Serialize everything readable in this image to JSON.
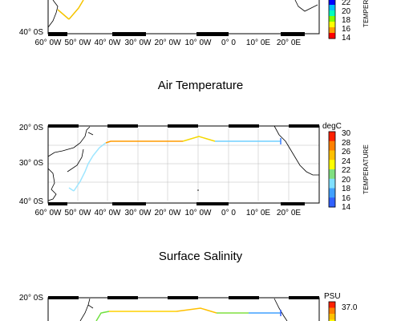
{
  "panels": [
    {
      "title": "",
      "y_ticks": [
        "40° 0S"
      ],
      "x_ticks": [
        "60° 0W",
        "50° 0W",
        "40° 0W",
        "30° 0W",
        "20° 0W",
        "10° 0W",
        "0° 0",
        "10° 0E",
        "20° 0E"
      ],
      "colorbar": {
        "title": "",
        "ticks": [
          "22",
          "20",
          "18",
          "16",
          "14"
        ],
        "label": "TEMPERATURE",
        "colors": [
          "#ffffff",
          "#0000ff",
          "#00c0ff",
          "#00ffc0",
          "#80ff00",
          "#ffff00",
          "#ffa000",
          "#ff0000"
        ]
      }
    },
    {
      "title": "Air Temperature",
      "y_ticks": [
        "20° 0S",
        "30° 0S",
        "40° 0S"
      ],
      "x_ticks": [
        "60° 0W",
        "50° 0W",
        "40° 0W",
        "30° 0W",
        "20° 0W",
        "10° 0W",
        "0° 0",
        "10° 0E",
        "20° 0E"
      ],
      "colorbar": {
        "title": "degC",
        "ticks": [
          "30",
          "28",
          "26",
          "24",
          "22",
          "20",
          "18",
          "16",
          "14"
        ],
        "label": "TEMPERATURE",
        "colors": [
          "#ff2000",
          "#ff8000",
          "#ffc000",
          "#ffff00",
          "#80e080",
          "#80e0ff",
          "#40a0ff",
          "#3060ff"
        ]
      }
    },
    {
      "title": "Surface Salinity",
      "y_ticks": [
        "20° 0S"
      ],
      "x_ticks": [],
      "colorbar": {
        "title": "PSU",
        "ticks": [
          "37.0"
        ],
        "label": "",
        "colors": [
          "#ff2000",
          "#ff8000",
          "#ffc000",
          "#ffff00"
        ]
      }
    }
  ]
}
